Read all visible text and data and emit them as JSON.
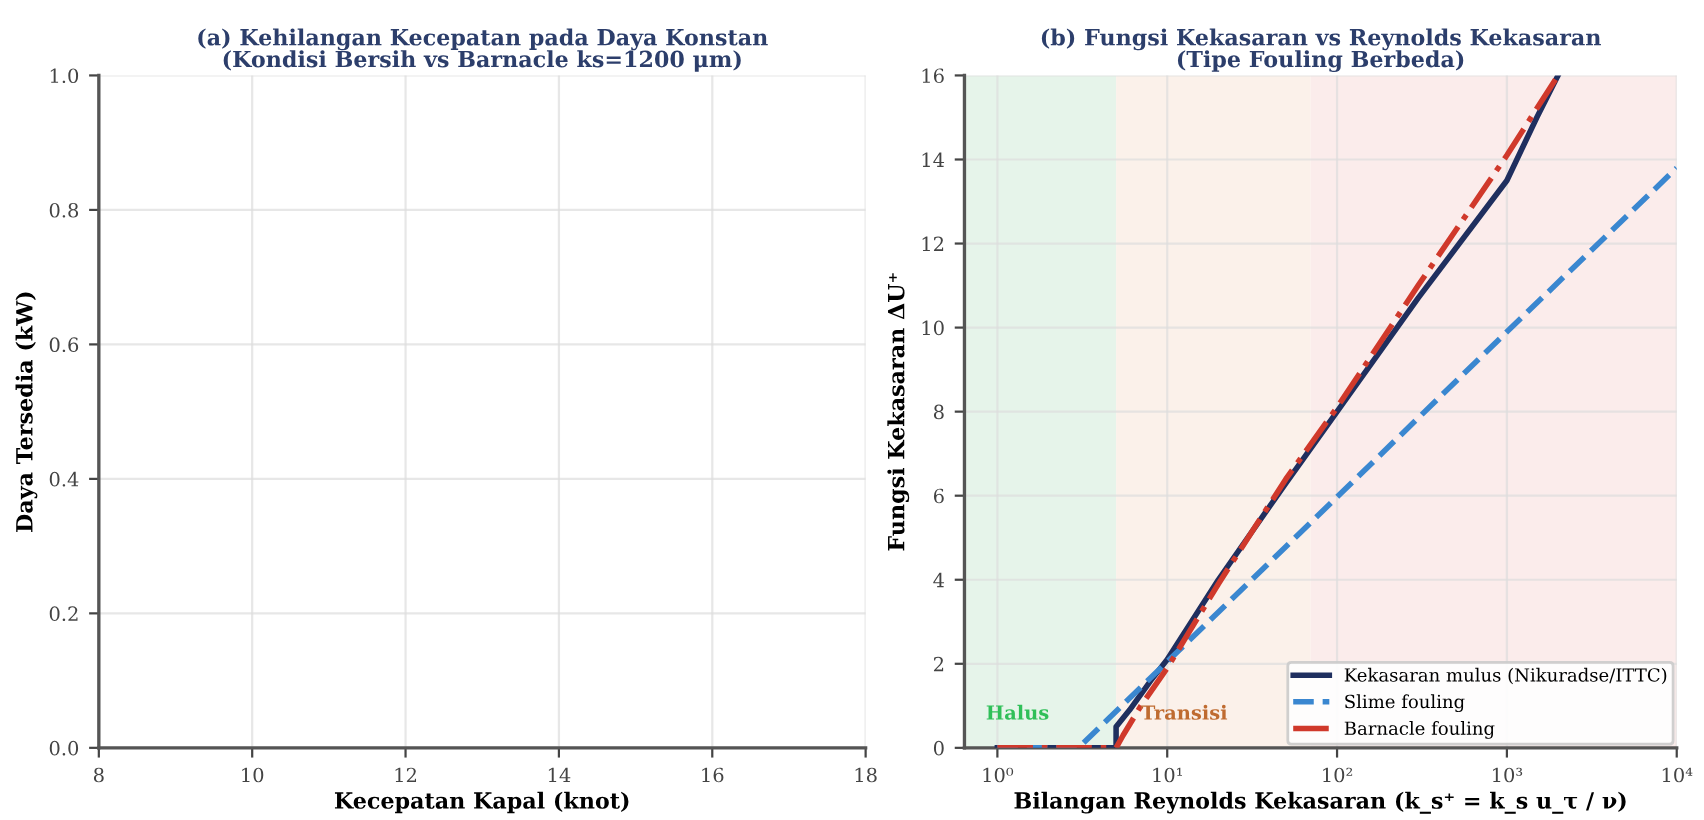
{
  "chart_data": [
    {
      "type": "line",
      "title": "(a) Kehilangan Kecepatan pada Daya Konstan\n(Kondisi Bersih vs Barnacle ks=1200 μm)",
      "xlabel": "Kecepatan Kapal (knot)",
      "ylabel": "Daya Tersedia (kW)",
      "xlim": [
        8,
        18
      ],
      "xticks": [
        8,
        10,
        12,
        14,
        16,
        18
      ],
      "ylim": [
        0,
        1
      ],
      "yticks": [
        {
          "value": 0,
          "label": "0.0"
        },
        {
          "value": 0.2,
          "label": "0.2"
        },
        {
          "value": 0.4,
          "label": "0.4"
        },
        {
          "value": 0.6,
          "label": "0.6"
        },
        {
          "value": 0.8,
          "label": "0.8"
        },
        {
          "value": 1,
          "label": "1.0"
        }
      ],
      "grid": true
    },
    {
      "type": "line",
      "title": "(b) Fungsi Kekasaran vs Reynolds Kekasaran\n(Tipe Fouling Berbeda)",
      "xlabel": "Bilangan Reynolds Kekasaran (k_s⁺ = k_s u_τ / ν)",
      "ylabel": "Fungsi Kekasaran ΔU⁺",
      "log": "x",
      "xlim": [
        0.64,
        10000
      ],
      "xticks": [
        {
          "value": 1,
          "label": "10⁰"
        },
        {
          "value": 10,
          "label": "10¹"
        },
        {
          "value": 100,
          "label": "10²"
        },
        {
          "value": 1000,
          "label": "10³"
        },
        {
          "value": 10000,
          "label": "10⁴"
        }
      ],
      "ylim": [
        0,
        16
      ],
      "yticks": [
        0,
        2,
        4,
        6,
        8,
        10,
        12,
        14,
        16
      ],
      "grid": true,
      "legend": "bottom right",
      "bands": [
        {
          "axis": "x",
          "from": 0.64,
          "to": 5,
          "label": "Halus",
          "color": "#e6f4ea"
        },
        {
          "axis": "x",
          "from": 5,
          "to": 70,
          "label": "Transisi",
          "color": "#fbf1ea"
        },
        {
          "axis": "x",
          "from": 70,
          "to": 10000,
          "label": null,
          "color": "#fbeceb"
        }
      ],
      "series": [
        {
          "name": "Kekasaran mulus (Nikuradse/ITTC)",
          "color": "#1f2f5f",
          "line_style": "solid",
          "x": [
            1,
            5,
            5,
            6,
            8,
            10,
            20,
            50,
            100,
            300,
            1000,
            1500,
            2000
          ],
          "values": [
            0,
            0,
            0.5,
            0.9,
            1.6,
            2.1,
            4.0,
            6.3,
            8.0,
            10.7,
            13.5,
            15.0,
            16.0
          ]
        },
        {
          "name": "Slime fouling",
          "color": "#3a87d0",
          "line_style": "dashed",
          "x": [
            1,
            3,
            10,
            100,
            1000,
            10000
          ],
          "values": [
            0,
            0,
            2.05,
            5.97,
            9.9,
            13.8
          ]
        },
        {
          "name": "Barnacle fouling",
          "color": "#d0392b",
          "line_style": "dashdot",
          "x": [
            1,
            5,
            5.5,
            7,
            10,
            20,
            50,
            100,
            300,
            1000,
            2000
          ],
          "values": [
            0,
            0,
            0.3,
            1.0,
            1.9,
            3.9,
            6.4,
            8.1,
            11.0,
            14.1,
            16.0
          ]
        }
      ]
    }
  ]
}
